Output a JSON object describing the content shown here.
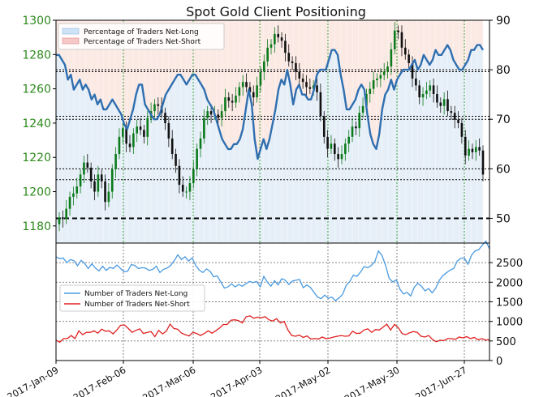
{
  "title": "Spot Gold Client Positioning",
  "colors": {
    "price_axis": "#2e8b1e",
    "net_long_line": "#2f6fb0",
    "net_long_fill": "#e6eff8",
    "net_short_fill": "#fbe9e4",
    "candle_up": "#0a7a1a",
    "candle_down": "#111111",
    "count_long": "#4a9ae0",
    "count_short": "#e02020",
    "legend_long_patch": "#cfe3f7",
    "legend_short_patch": "#f6c8c8"
  },
  "legend_top": {
    "items": [
      "Percentage of Traders Net-Long",
      "Percentage of Traders Net-Short"
    ]
  },
  "legend_bottom": {
    "items": [
      "Number of Traders Net-Long",
      "Number of Traders Net-Short"
    ]
  },
  "chart_data": [
    {
      "type": "candlestick+line",
      "title": "Spot Gold Client Positioning",
      "price_axis": {
        "label": "",
        "ylim": [
          1170,
          1300
        ],
        "ticks": [
          1180,
          1200,
          1220,
          1240,
          1260,
          1280,
          1300
        ]
      },
      "percent_axis": {
        "label": "",
        "ylim": [
          45,
          90
        ],
        "ticks": [
          50,
          60,
          70,
          80,
          90
        ]
      },
      "x_ticks": [
        "2017-Jan-09",
        "2017-Feb-06",
        "2017-Mar-06",
        "2017-Apr-03",
        "2017-May-02",
        "2017-May-30",
        "2017-Jun-27"
      ],
      "reference_levels_percent": [
        50,
        60,
        70,
        80
      ],
      "reference_levels_price": [
        1270,
        1244,
        1207
      ],
      "grid": true,
      "legend_placement": "top-left",
      "series": [
        {
          "name": "Percentage of Traders Net-Long",
          "values": [
            83,
            83,
            82,
            81,
            78,
            79,
            76,
            77,
            78,
            76,
            77,
            76,
            74,
            75,
            73,
            74,
            72,
            72,
            73,
            74,
            73,
            72,
            71,
            69,
            68,
            70,
            72,
            75,
            77,
            77,
            73,
            72,
            71,
            70,
            70,
            71,
            73,
            75,
            76,
            77,
            78,
            79,
            79,
            78,
            77,
            78,
            79,
            79,
            78,
            77,
            76,
            74,
            73,
            72,
            70,
            68,
            66,
            65,
            64,
            64,
            65,
            65,
            66,
            68,
            72,
            76,
            73,
            66,
            62,
            64,
            66,
            64,
            66,
            69,
            72,
            76,
            78,
            77,
            80,
            77,
            73,
            76,
            77,
            75,
            75,
            74,
            74,
            76,
            79,
            80,
            80,
            80,
            82,
            84,
            84,
            83,
            79,
            76,
            72,
            72,
            73,
            74,
            76,
            77,
            76,
            71,
            67,
            65,
            64,
            67,
            72,
            75,
            76,
            78,
            76,
            78,
            79,
            80,
            80,
            80,
            81,
            82,
            80,
            81,
            83,
            82,
            81,
            82,
            84,
            83,
            83,
            84,
            85,
            84,
            82,
            81,
            80,
            80,
            81,
            82,
            84,
            84,
            85,
            85,
            84
          ]
        },
        {
          "name": "Spot Gold (candles)",
          "close": [
            1185,
            1184,
            1190,
            1197,
            1199,
            1203,
            1210,
            1217,
            1214,
            1206,
            1200,
            1210,
            1206,
            1194,
            1200,
            1213,
            1222,
            1232,
            1237,
            1228,
            1226,
            1234,
            1238,
            1236,
            1232,
            1243,
            1247,
            1251,
            1250,
            1246,
            1240,
            1231,
            1222,
            1215,
            1204,
            1200,
            1200,
            1205,
            1213,
            1225,
            1231,
            1243,
            1247,
            1245,
            1245,
            1243,
            1247,
            1255,
            1253,
            1252,
            1256,
            1261,
            1264,
            1261,
            1258,
            1255,
            1262,
            1270,
            1276,
            1284,
            1286,
            1292,
            1290,
            1288,
            1281,
            1276,
            1275,
            1270,
            1266,
            1264,
            1261,
            1260,
            1262,
            1258,
            1244,
            1232,
            1225,
            1228,
            1222,
            1219,
            1222,
            1228,
            1232,
            1238,
            1237,
            1246,
            1250,
            1257,
            1260,
            1265,
            1266,
            1268,
            1270,
            1273,
            1283,
            1294,
            1293,
            1284,
            1280,
            1275,
            1266,
            1262,
            1255,
            1257,
            1259,
            1262,
            1257,
            1252,
            1250,
            1254,
            1247,
            1246,
            1242,
            1240,
            1232,
            1221,
            1225,
            1223,
            1226,
            1224,
            1210
          ]
        }
      ]
    },
    {
      "type": "line",
      "title": "",
      "ylim": [
        0,
        3000
      ],
      "ticks": [
        0,
        500,
        1000,
        1500,
        2000,
        2500
      ],
      "legend_placement": "center-left",
      "series": [
        {
          "name": "Number of Traders Net-Long",
          "values": [
            2650,
            2600,
            2620,
            2500,
            2580,
            2550,
            2420,
            2560,
            2480,
            2350,
            2470,
            2360,
            2290,
            2410,
            2300,
            2380,
            2350,
            2440,
            2350,
            2270,
            2280,
            2450,
            2430,
            2350,
            2370,
            2360,
            2300,
            2330,
            2410,
            2250,
            2330,
            2360,
            2430,
            2550,
            2700,
            2580,
            2650,
            2540,
            2620,
            2430,
            2310,
            2250,
            2340,
            2280,
            2140,
            2160,
            2010,
            1850,
            1880,
            1960,
            1880,
            1940,
            1900,
            1960,
            2020,
            1990,
            2020,
            1880,
            2150,
            2000,
            1900,
            2040,
            1930,
            2090,
            2050,
            1940,
            2030,
            2050,
            2070,
            1860,
            1930,
            1870,
            1740,
            1620,
            1580,
            1670,
            1590,
            1620,
            1530,
            1600,
            1690,
            1920,
            2020,
            2180,
            2150,
            2260,
            2400,
            2370,
            2430,
            2530,
            2800,
            2680,
            2430,
            2100,
            2010,
            2060,
            1820,
            1700,
            1740,
            1650,
            1870,
            1970,
            1900,
            1780,
            1840,
            1730,
            1850,
            2050,
            2170,
            2240,
            2310,
            2350,
            2540,
            2610,
            2620,
            2460,
            2690,
            2800,
            2830,
            2950,
            3050,
            2850
          ]
        },
        {
          "name": "Number of Traders Net-Short",
          "values": [
            520,
            470,
            560,
            560,
            640,
            560,
            760,
            660,
            720,
            720,
            760,
            700,
            800,
            750,
            760,
            680,
            780,
            900,
            910,
            820,
            720,
            770,
            810,
            690,
            720,
            740,
            610,
            770,
            680,
            750,
            930,
            820,
            800,
            700,
            660,
            630,
            720,
            690,
            640,
            690,
            760,
            700,
            760,
            830,
            920,
            920,
            1030,
            1040,
            1020,
            960,
            1120,
            1140,
            1080,
            1110,
            1090,
            1120,
            1040,
            1010,
            1070,
            960,
            1000,
            780,
            640,
            620,
            650,
            590,
            630,
            550,
            560,
            550,
            600,
            560,
            570,
            600,
            620,
            640,
            620,
            630,
            750,
            690,
            700,
            780,
            810,
            720,
            790,
            780,
            850,
            930,
            780,
            920,
            840,
            690,
            660,
            710,
            740,
            720,
            620,
            600,
            640,
            540,
            480,
            520,
            510,
            560,
            560,
            540,
            600,
            580,
            610,
            560,
            590,
            530,
            560,
            520,
            540
          ]
        }
      ]
    }
  ]
}
